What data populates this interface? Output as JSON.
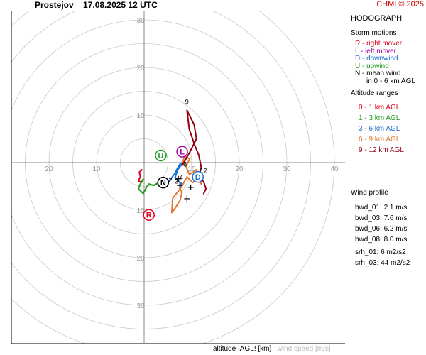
{
  "header": {
    "station": "Prostejov",
    "datetime": "17.08.2025 12 UTC",
    "copyright": "CHMI © 2025"
  },
  "panel": {
    "title": "HODOGRAPH",
    "storm_motions_title": "Storm motions",
    "storm_motions": [
      {
        "label": "R - right mover",
        "color": "#e0001b"
      },
      {
        "label": "L - left mover",
        "color": "#a000a0"
      },
      {
        "label": "D - downwind",
        "color": "#1e6fd0"
      },
      {
        "label": "U - upwind",
        "color": "#1a9a1a"
      },
      {
        "label": "N - mean wind",
        "color": "#000000"
      },
      {
        "label": "in 0 - 6 km AGL",
        "color": "#000000"
      }
    ],
    "altitude_title": "Altitude ranges",
    "altitude_ranges": [
      {
        "label": "0 - 1 km AGL",
        "color": "#e0001b"
      },
      {
        "label": "1 - 3 km AGL",
        "color": "#1a9a1a"
      },
      {
        "label": "3 - 6 km AGL",
        "color": "#1e6fd0"
      },
      {
        "label": "6 - 9 km AGL",
        "color": "#e07830"
      },
      {
        "label": "9 - 12 km AGL",
        "color": "#900010"
      }
    ],
    "wind_profile_title": "Wind profile",
    "wind_profile": [
      "bwd_01: 2.1 m/s",
      "bwd_03: 7.6 m/s",
      "bwd_06: 6.2 m/s",
      "bwd_08: 8.0 m/s"
    ],
    "helicity": [
      "srh_01: 6 m2/s2",
      "srh_03: 44 m2/s2"
    ]
  },
  "footer": {
    "altitude_label": "altitude !AGL! [km]",
    "speed_label": "wind speed [m/s]"
  },
  "chart_data": {
    "type": "hodograph",
    "title": "HODOGRAPH",
    "xlabel": "",
    "ylabel": "",
    "range_rings": [
      5,
      10,
      15,
      20,
      25,
      30,
      35,
      40
    ],
    "tick_labels": {
      "x_left": [
        "20",
        "10"
      ],
      "x_right": [
        "10",
        "20",
        "30",
        "40"
      ],
      "y_up": [
        "10",
        "20",
        "30"
      ],
      "y_down": [
        "10",
        "20",
        "30"
      ]
    },
    "grid": true,
    "axis_color": "#888888",
    "series": [
      {
        "name": "0 - 1 km AGL",
        "color": "#e0001b",
        "points": [
          [
            -0.5,
            -1.5
          ],
          [
            -1.0,
            -2.0
          ],
          [
            -0.8,
            -3.0
          ],
          [
            -1.2,
            -3.8
          ],
          [
            -0.6,
            -4.2
          ],
          [
            -0.2,
            -3.5
          ]
        ]
      },
      {
        "name": "1 - 3 km AGL",
        "color": "#1a9a1a",
        "points": [
          [
            -0.2,
            -3.5
          ],
          [
            -0.8,
            -4.5
          ],
          [
            -1.2,
            -5.5
          ],
          [
            -0.2,
            -6.5
          ],
          [
            0.5,
            -5.2
          ],
          [
            1.0,
            -4.5
          ],
          [
            2.0,
            -4.8
          ],
          [
            3.2,
            -4.2
          ],
          [
            4.5,
            -4.4
          ]
        ]
      },
      {
        "name": "3 - 6 km AGL",
        "color": "#1e6fd0",
        "points": [
          [
            4.5,
            -4.4
          ],
          [
            5.5,
            -3.6
          ],
          [
            6.5,
            -2.2
          ],
          [
            7.0,
            -1.2
          ],
          [
            7.6,
            -0.2
          ],
          [
            8.3,
            0.2
          ],
          [
            7.0,
            -1.6
          ],
          [
            6.5,
            -3.2
          ],
          [
            7.8,
            -4.4
          ],
          [
            7.5,
            -5.5
          ]
        ]
      },
      {
        "name": "6 - 9 km AGL",
        "color": "#e07830",
        "points": [
          [
            7.5,
            -5.5
          ],
          [
            8.0,
            -6.2
          ],
          [
            7.5,
            -8.0
          ],
          [
            6.5,
            -9.6
          ],
          [
            5.8,
            -10.5
          ],
          [
            6.0,
            -7.5
          ],
          [
            7.8,
            -5.2
          ],
          [
            9.0,
            -3.0
          ],
          [
            10.2,
            -4.2
          ],
          [
            11.0,
            -3.5
          ],
          [
            12.0,
            -4.5
          ],
          [
            11.0,
            -1.5
          ],
          [
            9.5,
            -2.5
          ],
          [
            8.8,
            -0.8
          ],
          [
            9.6,
            0.8
          ],
          [
            8.5,
            1.4
          ],
          [
            8.0,
            -0.6
          ]
        ]
      },
      {
        "name": "9 - 12 km AGL",
        "color": "#900010",
        "points": [
          [
            8.0,
            -0.6
          ],
          [
            9.5,
            2.0
          ],
          [
            11.0,
            5.0
          ],
          [
            10.5,
            8.0
          ],
          [
            9.5,
            10.0
          ],
          [
            9.0,
            11.0
          ],
          [
            9.5,
            7.0
          ],
          [
            10.5,
            4.0
          ],
          [
            11.5,
            1.5
          ],
          [
            12.0,
            -1.0
          ],
          [
            11.5,
            -3.0
          ],
          [
            12.5,
            -4.0
          ],
          [
            13.0,
            -5.5
          ],
          [
            12.5,
            -6.5
          ]
        ]
      }
    ],
    "altitude_markers": [
      {
        "label": "9",
        "u": 9.0,
        "v": 12.3
      },
      {
        "label": "8",
        "u": 8.6,
        "v": -0.8
      },
      {
        "label": "12",
        "u": 12.5,
        "v": -2.2
      },
      {
        "label": "4",
        "u": 7.8,
        "v": -3.6
      },
      {
        "label": "3",
        "u": 6.8,
        "v": -4.4
      },
      {
        "label": "2",
        "u": 5.5,
        "v": -4.2
      }
    ],
    "storm_markers": [
      {
        "label": "U",
        "u": 3.5,
        "v": 1.5,
        "color": "#1a9a1a"
      },
      {
        "label": "L",
        "u": 8.0,
        "v": 2.3,
        "color": "#a000a0"
      },
      {
        "label": "N",
        "u": 4.0,
        "v": -4.2,
        "color": "#000000"
      },
      {
        "label": "D",
        "u": 11.3,
        "v": -3.0,
        "color": "#1e6fd0"
      },
      {
        "label": "R",
        "u": 1.0,
        "v": -11.0,
        "color": "#e0001b"
      }
    ],
    "crosses": [
      {
        "u": 7.5,
        "v": -4.8
      },
      {
        "u": 9.8,
        "v": -5.2
      },
      {
        "u": 7.2,
        "v": -3.4
      },
      {
        "u": 9.0,
        "v": -7.6
      }
    ]
  }
}
